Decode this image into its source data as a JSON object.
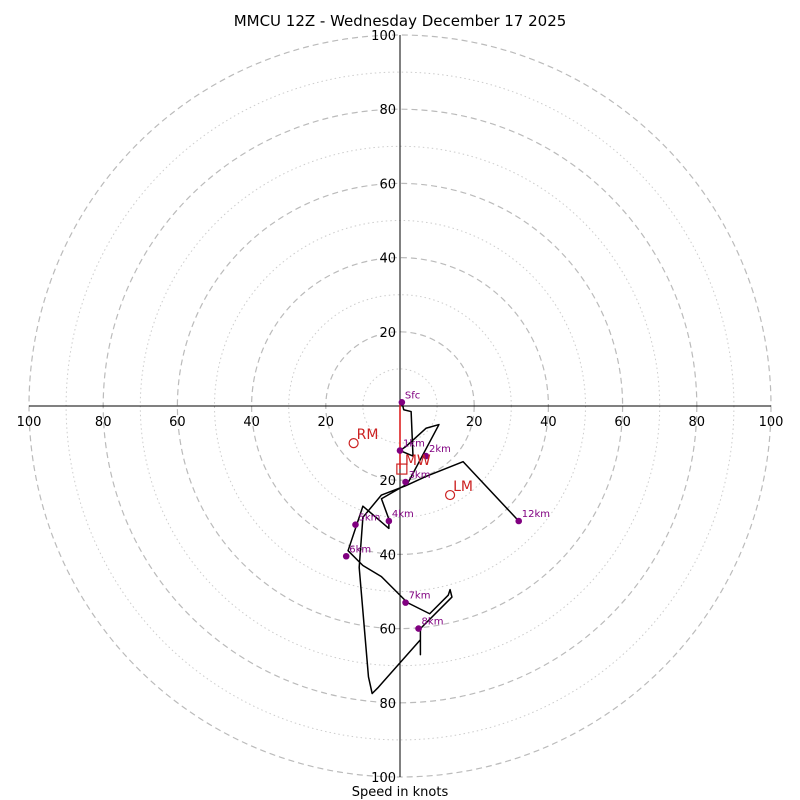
{
  "chart_data": {
    "type": "hodograph",
    "title": "MMCU 12Z - Wednesday December 17 2025",
    "xlabel": "Speed in knots",
    "max_speed": 100,
    "rings_major": [
      20,
      40,
      60,
      80,
      100
    ],
    "rings_minor": [
      10,
      30,
      50,
      70,
      90
    ],
    "x_ticks": [
      {
        "value": -100,
        "label": "100"
      },
      {
        "value": -80,
        "label": "80"
      },
      {
        "value": -60,
        "label": "60"
      },
      {
        "value": -40,
        "label": "40"
      },
      {
        "value": -20,
        "label": "20"
      },
      {
        "value": 20,
        "label": "20"
      },
      {
        "value": 40,
        "label": "40"
      },
      {
        "value": 60,
        "label": "60"
      },
      {
        "value": 80,
        "label": "80"
      },
      {
        "value": 100,
        "label": "100"
      }
    ],
    "y_ticks": [
      {
        "value": 100,
        "label": "100"
      },
      {
        "value": 80,
        "label": "80"
      },
      {
        "value": 60,
        "label": "60"
      },
      {
        "value": 40,
        "label": "40"
      },
      {
        "value": 20,
        "label": "20"
      },
      {
        "value": -20,
        "label": "20"
      },
      {
        "value": -40,
        "label": "40"
      },
      {
        "value": -60,
        "label": "60"
      },
      {
        "value": -80,
        "label": "80"
      },
      {
        "value": -100,
        "label": "100"
      }
    ],
    "hodograph_line": [
      [
        0.5,
        1
      ],
      [
        1,
        -1
      ],
      [
        3,
        -1.5
      ],
      [
        3.5,
        -13.5
      ],
      [
        0,
        -12
      ],
      [
        1.5,
        -11
      ],
      [
        7,
        -6
      ],
      [
        10.5,
        -5
      ],
      [
        2,
        -21
      ],
      [
        -5,
        -25
      ],
      [
        -3,
        -30.5
      ],
      [
        -3,
        -33
      ],
      [
        -10,
        -27
      ],
      [
        -14,
        -39
      ],
      [
        -10,
        -43
      ],
      [
        -5,
        -46
      ],
      [
        2,
        -53
      ],
      [
        8,
        -56
      ],
      [
        13,
        -51
      ],
      [
        13.5,
        -49.5
      ],
      [
        14,
        -51.5
      ],
      [
        5.5,
        -60
      ],
      [
        5.5,
        -67
      ],
      [
        5.5,
        -63
      ],
      [
        -6,
        -76
      ],
      [
        -7.5,
        -77.5
      ],
      [
        -8.5,
        -73
      ],
      [
        -11,
        -43.5
      ],
      [
        -10,
        -30
      ],
      [
        -5,
        -24
      ],
      [
        1.5,
        -21.5
      ],
      [
        7,
        -19
      ],
      [
        17,
        -15
      ],
      [
        32,
        -31
      ]
    ],
    "height_markers": [
      {
        "label": "Sfc",
        "u": 0.5,
        "v": 1
      },
      {
        "label": "1km",
        "u": 0,
        "v": -12
      },
      {
        "label": "2km",
        "u": 7,
        "v": -13.5
      },
      {
        "label": "3km",
        "u": 1.5,
        "v": -20.5
      },
      {
        "label": "4km",
        "u": -3,
        "v": -31
      },
      {
        "label": "5km",
        "u": -12,
        "v": -32
      },
      {
        "label": "6km",
        "u": -14.5,
        "v": -40.5
      },
      {
        "label": "7km",
        "u": 1.5,
        "v": -53
      },
      {
        "label": "8km",
        "u": 5,
        "v": -60
      },
      {
        "label": "12km",
        "u": 32,
        "v": -31
      }
    ],
    "red_line": [
      [
        0,
        1
      ],
      [
        0,
        -12
      ],
      [
        0,
        -17
      ]
    ],
    "storm_motion": [
      {
        "label": "RM",
        "u": -12.5,
        "v": -10,
        "shape": "circle"
      },
      {
        "label": "LM",
        "u": 13.5,
        "v": -24,
        "shape": "circle"
      },
      {
        "label": "MW",
        "u": 0.5,
        "v": -17,
        "shape": "square"
      }
    ],
    "colors": {
      "hodograph": "#000000",
      "markers": "#800080",
      "storm": "#cc2222",
      "grid": "#bbbbbb",
      "axes": "#000000"
    }
  }
}
